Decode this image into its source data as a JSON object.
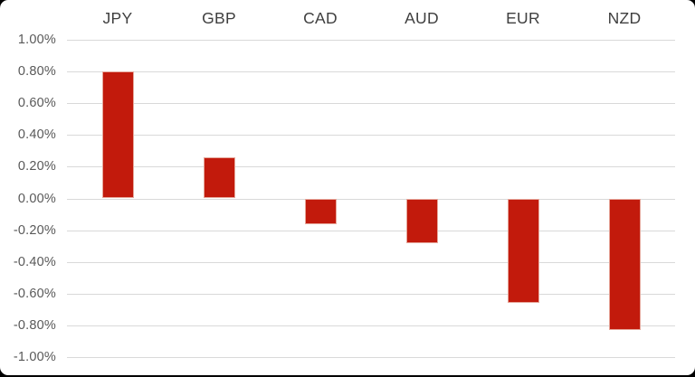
{
  "page": {
    "background": "#ffffff",
    "frame_color": "#000000"
  },
  "chart_data": {
    "type": "bar",
    "title": "",
    "xlabel": "",
    "ylabel": "",
    "categories": [
      "JPY",
      "GBP",
      "CAD",
      "AUD",
      "EUR",
      "NZD"
    ],
    "values": [
      0.8,
      0.26,
      -0.16,
      -0.28,
      -0.66,
      -0.83
    ],
    "unit": "%",
    "y_ticks": [
      "1.00%",
      "0.80%",
      "0.60%",
      "0.40%",
      "0.20%",
      "0.00%",
      "-0.20%",
      "-0.40%",
      "-0.60%",
      "-0.80%",
      "-1.00%"
    ],
    "ylim": [
      -1.0,
      1.0
    ],
    "y_tick_step": 0.2,
    "grid": true,
    "legend": "none",
    "category_axis_position": "top",
    "colors": {
      "bar_fill": "#c21a0c",
      "bar_border": "#e6a79b",
      "gridline": "#d9d9d9",
      "y_tick_label": "#595959",
      "category_label": "#3f3f3f"
    }
  }
}
